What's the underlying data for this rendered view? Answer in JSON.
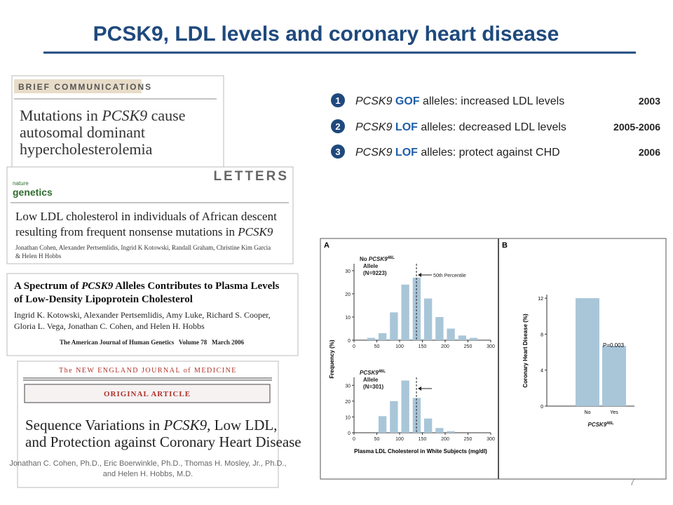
{
  "title": "PCSK9, LDL levels and coronary heart disease",
  "points": [
    {
      "num": "1",
      "gene": "PCSK9",
      "kind": "GOF",
      "text": " alleles: increased LDL levels",
      "year": "2003"
    },
    {
      "num": "2",
      "gene": "PCSK9",
      "kind": "LOF",
      "text": " alleles: decreased LDL levels",
      "year": "2005-2006"
    },
    {
      "num": "3",
      "gene": "PCSK9",
      "kind": "LOF",
      "text": " alleles: protect against CHD",
      "year": "2006"
    }
  ],
  "papers": [
    {
      "header": "BRIEF COMMUNICATIONS",
      "title": [
        [
          "Mutations in ",
          "PCSK9",
          " cause"
        ],
        [
          "autosomal dominant"
        ],
        [
          "hypercholesterolemia"
        ]
      ]
    },
    {
      "header": "LETTERS",
      "logo": [
        "nature",
        "genetics"
      ],
      "title": [
        [
          "Low LDL cholesterol in individuals of African descent"
        ],
        [
          "resulting from frequent nonsense mutations in ",
          "PCSK9"
        ]
      ],
      "authors": [
        "Jonathan Cohen, Alexander Pertsemlidis, Ingrid K Kotowski, Randall Graham, Christine Kim Garcia",
        "& Helen H Hobbs"
      ]
    },
    {
      "title": [
        [
          "A Spectrum of ",
          "PCSK9",
          " Alleles Contributes to Plasma Levels"
        ],
        [
          "of Low-Density Lipoprotein Cholesterol"
        ]
      ],
      "authors": [
        "Ingrid K. Kotowski, Alexander Pertsemlidis, Amy Luke, Richard S. Cooper,",
        "Gloria L. Vega, Jonathan C. Cohen, and Helen H. Hobbs"
      ],
      "journal": "The American Journal of Human Genetics   Volume 78   March 2006"
    },
    {
      "header": "The NEW ENGLAND JOURNAL of MEDICINE",
      "section": "ORIGINAL ARTICLE",
      "title": [
        [
          "Sequence Variations in ",
          "PCSK9",
          ", Low LDL,"
        ],
        [
          "and Protection against Coronary Heart Disease"
        ]
      ],
      "authors": [
        "Jonathan C. Cohen, Ph.D., Eric Boerwinkle, Ph.D., Thomas H. Mosley, Jr., Ph.D.,",
        "and Helen H. Hobbs, M.D."
      ]
    }
  ],
  "page_number": "7",
  "chart_data": [
    {
      "type": "histogram",
      "panel": "A",
      "prefix": "No ",
      "gene": "PCSK9",
      "allele": "46L",
      "lines": [
        "Allele",
        "(N=9223)"
      ],
      "marker_label": "50th Percentile",
      "marker_x": 137,
      "ylabel": "Frequency (%)",
      "xlabel": "Plasma LDL Cholesterol in White Subjects (mg/dl)",
      "bins": [
        25,
        50,
        75,
        100,
        125,
        150,
        175,
        200,
        225,
        250,
        275
      ],
      "values": [
        1,
        3,
        12,
        24,
        27,
        18,
        10,
        5,
        2,
        1
      ],
      "xlim": [
        0,
        300
      ],
      "xticks": [
        0,
        50,
        100,
        150,
        200,
        250,
        300
      ],
      "ylim": [
        0,
        33
      ],
      "yticks": [
        0,
        10,
        20,
        30
      ],
      "color": "#a9c6d9"
    },
    {
      "type": "histogram",
      "gene": "PCSK9",
      "allele": "46L",
      "lines": [
        "Allele",
        "(N=301)"
      ],
      "marker_x": 137,
      "bins": [
        50,
        75,
        100,
        125,
        150,
        175,
        200,
        225
      ],
      "values": [
        10.5,
        20,
        33,
        22,
        9,
        3,
        1
      ],
      "xlim": [
        0,
        300
      ],
      "xticks": [
        0,
        50,
        100,
        150,
        200,
        250,
        300
      ],
      "ylim": [
        0,
        35
      ],
      "yticks": [
        0,
        10,
        20,
        30
      ],
      "color": "#a9c6d9"
    },
    {
      "type": "bar",
      "panel": "B",
      "categories": [
        "No",
        "Yes"
      ],
      "values": [
        12,
        6.7
      ],
      "ylim": [
        0,
        12.4
      ],
      "yticks": [
        0,
        4,
        8,
        12
      ],
      "ylabel": "Coronary Heart Disease (%)",
      "gene": "PCSK9",
      "allele": "46L",
      "annotation": "P=0.003",
      "color": "#a9c6d9"
    }
  ]
}
